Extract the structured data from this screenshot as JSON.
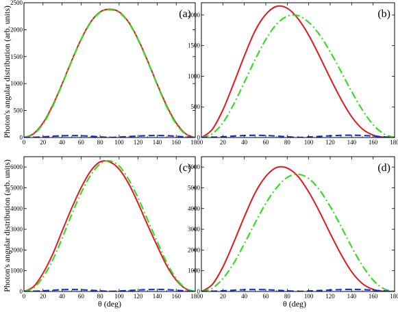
{
  "figure": {
    "ylabel": "Photon's angular distribution (arb. units)",
    "xlabel": "θ (deg)"
  },
  "chart_data": [
    {
      "type": "line",
      "panel_label": "(a)",
      "xlabel": "θ (deg)",
      "ylabel": "Photon's angular distribution (arb. units)",
      "xlim": [
        0,
        180
      ],
      "ylim": [
        0,
        2500
      ],
      "xticks": [
        0,
        20,
        40,
        60,
        80,
        100,
        120,
        140,
        160,
        180
      ],
      "yticks": [
        0,
        500,
        1000,
        1500,
        2000,
        2500
      ],
      "grid": false,
      "x": [
        0,
        10,
        20,
        30,
        40,
        50,
        60,
        70,
        80,
        90,
        100,
        110,
        120,
        130,
        140,
        150,
        160,
        170,
        180
      ],
      "series": [
        {
          "color": "#e8141b",
          "style": "solid",
          "values": [
            0,
            70,
            270,
            590,
            990,
            1420,
            1820,
            2140,
            2330,
            2380,
            2330,
            2140,
            1820,
            1420,
            990,
            590,
            270,
            70,
            0
          ]
        },
        {
          "color": "#33dd22",
          "style": "dash-dot",
          "values": [
            0,
            60,
            250,
            570,
            980,
            1410,
            1810,
            2130,
            2320,
            2370,
            2320,
            2130,
            1810,
            1410,
            980,
            570,
            250,
            60,
            0
          ]
        },
        {
          "color": "#1a33dd",
          "style": "dashed",
          "values": [
            0,
            4,
            12,
            24,
            33,
            36,
            33,
            24,
            12,
            2,
            8,
            18,
            28,
            35,
            38,
            34,
            24,
            10,
            0
          ]
        }
      ]
    },
    {
      "type": "line",
      "panel_label": "(b)",
      "xlabel": "θ (deg)",
      "ylabel": "Photon's angular distribution (arb. units)",
      "xlim": [
        0,
        180
      ],
      "ylim": [
        0,
        2200
      ],
      "xticks": [
        0,
        20,
        40,
        60,
        80,
        100,
        120,
        140,
        160,
        180
      ],
      "yticks": [
        0,
        500,
        1000,
        1500,
        2000
      ],
      "grid": false,
      "x": [
        0,
        10,
        20,
        30,
        40,
        50,
        60,
        70,
        80,
        90,
        100,
        110,
        120,
        130,
        140,
        150,
        160,
        170,
        180
      ],
      "series": [
        {
          "color": "#e8141b",
          "style": "solid",
          "values": [
            0,
            130,
            450,
            880,
            1330,
            1740,
            2010,
            2140,
            2110,
            1940,
            1670,
            1330,
            970,
            630,
            340,
            140,
            40,
            5,
            0
          ]
        },
        {
          "color": "#33dd22",
          "style": "dash-dot",
          "values": [
            0,
            60,
            240,
            540,
            900,
            1270,
            1600,
            1850,
            1980,
            1990,
            1880,
            1680,
            1400,
            1080,
            750,
            450,
            210,
            60,
            0
          ]
        },
        {
          "color": "#1a33dd",
          "style": "dashed",
          "values": [
            0,
            4,
            12,
            24,
            33,
            36,
            33,
            24,
            12,
            2,
            8,
            18,
            28,
            35,
            38,
            34,
            24,
            10,
            0
          ]
        }
      ]
    },
    {
      "type": "line",
      "panel_label": "(c)",
      "xlabel": "θ (deg)",
      "ylabel": "Photon's angular distribution (arb. units)",
      "xlim": [
        0,
        180
      ],
      "ylim": [
        0,
        6500
      ],
      "xticks": [
        0,
        20,
        40,
        60,
        80,
        100,
        120,
        140,
        160,
        180
      ],
      "yticks": [
        0,
        1000,
        2000,
        3000,
        4000,
        5000,
        6000
      ],
      "grid": false,
      "x": [
        0,
        10,
        20,
        30,
        40,
        50,
        60,
        70,
        80,
        90,
        100,
        110,
        120,
        130,
        140,
        150,
        160,
        170,
        180
      ],
      "series": [
        {
          "color": "#e8141b",
          "style": "solid",
          "values": [
            0,
            230,
            880,
            1780,
            2900,
            4000,
            5000,
            5800,
            6250,
            6250,
            5900,
            5200,
            4250,
            3200,
            2200,
            1250,
            550,
            130,
            0
          ]
        },
        {
          "color": "#33dd22",
          "style": "dash-dot",
          "values": [
            0,
            170,
            690,
            1500,
            2550,
            3700,
            4750,
            5600,
            6150,
            6300,
            6050,
            5400,
            4500,
            3450,
            2400,
            1400,
            620,
            150,
            0
          ]
        },
        {
          "color": "#1a33dd",
          "style": "dashed",
          "values": [
            0,
            10,
            30,
            60,
            85,
            95,
            85,
            60,
            30,
            5,
            20,
            45,
            70,
            90,
            100,
            90,
            60,
            25,
            0
          ]
        }
      ]
    },
    {
      "type": "line",
      "panel_label": "(d)",
      "xlabel": "θ (deg)",
      "ylabel": "Photon's angular distribution (arb. units)",
      "xlim": [
        0,
        180
      ],
      "ylim": [
        0,
        6500
      ],
      "xticks": [
        0,
        20,
        40,
        60,
        80,
        100,
        120,
        140,
        160,
        180
      ],
      "yticks": [
        0,
        1000,
        2000,
        3000,
        4000,
        5000,
        6000
      ],
      "grid": false,
      "x": [
        0,
        10,
        20,
        30,
        40,
        50,
        60,
        70,
        80,
        90,
        100,
        110,
        120,
        130,
        140,
        150,
        160,
        170,
        180
      ],
      "series": [
        {
          "color": "#e8141b",
          "style": "solid",
          "values": [
            0,
            330,
            1180,
            2350,
            3600,
            4750,
            5550,
            5980,
            5950,
            5550,
            4800,
            3850,
            2800,
            1800,
            950,
            380,
            100,
            10,
            0
          ]
        },
        {
          "color": "#33dd22",
          "style": "dash-dot",
          "values": [
            0,
            150,
            620,
            1350,
            2300,
            3300,
            4250,
            5000,
            5500,
            5650,
            5450,
            4900,
            4100,
            3150,
            2150,
            1250,
            550,
            130,
            0
          ]
        },
        {
          "color": "#1a33dd",
          "style": "dashed",
          "values": [
            0,
            10,
            30,
            60,
            85,
            95,
            85,
            60,
            30,
            5,
            20,
            45,
            70,
            90,
            100,
            90,
            60,
            25,
            0
          ]
        }
      ]
    }
  ]
}
